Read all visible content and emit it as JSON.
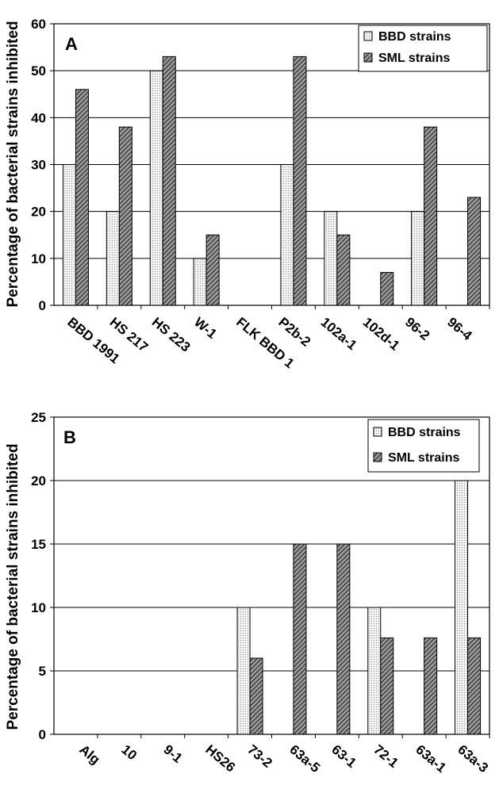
{
  "chart_data": [
    {
      "type": "bar",
      "panel_label": "A",
      "ylabel": "Percentage of bacterial strains inhibited",
      "ylim": [
        0,
        60
      ],
      "yticks": [
        "0",
        "10",
        "20",
        "30",
        "40",
        "50",
        "60"
      ],
      "ytick_values": [
        0,
        10,
        20,
        30,
        40,
        50,
        60
      ],
      "grid": true,
      "legend_position": "top-right",
      "categories": [
        "BBD 1991",
        "HS 217",
        "HS 223",
        "W-1",
        "FLK BBD 1",
        "P2b-2",
        "102a-1",
        "102d-1",
        "96-2",
        "96-4"
      ],
      "series": [
        {
          "name": "BBD strains",
          "values": [
            30,
            20,
            50,
            10,
            0,
            30,
            20,
            0,
            20,
            0
          ]
        },
        {
          "name": "SML strains",
          "values": [
            46,
            38,
            53,
            15,
            0,
            53,
            15,
            7,
            38,
            23
          ]
        }
      ]
    },
    {
      "type": "bar",
      "panel_label": "B",
      "ylabel": "Percentage of bacterial strains inhibited",
      "ylim": [
        0,
        25
      ],
      "yticks": [
        "0",
        "5",
        "10",
        "15",
        "20",
        "25"
      ],
      "ytick_values": [
        0,
        5,
        10,
        15,
        20,
        25
      ],
      "grid": true,
      "legend_position": "top-right",
      "categories": [
        "Alg",
        "10",
        "9-1",
        "HS26",
        "73-2",
        "63a-5",
        "63-1",
        "72-1",
        "63a-1",
        "63a-3"
      ],
      "series": [
        {
          "name": "BBD strains",
          "values": [
            0,
            0,
            0,
            0,
            10,
            0,
            0,
            10,
            0,
            20
          ]
        },
        {
          "name": "SML strains",
          "values": [
            0,
            0,
            0,
            0,
            6,
            15,
            15,
            7.6,
            7.6,
            7.6
          ]
        }
      ]
    }
  ]
}
